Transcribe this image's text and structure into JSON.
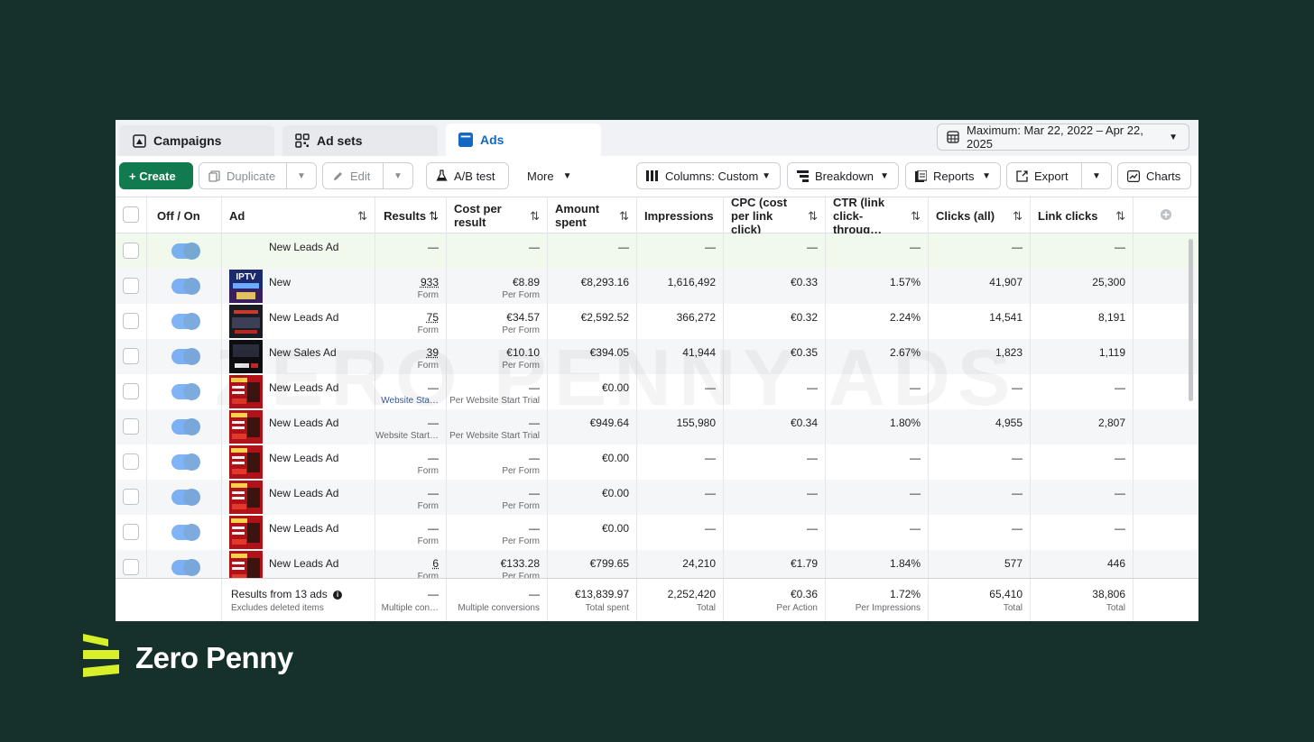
{
  "tabs": [
    {
      "label": "Campaigns",
      "icon": "flag-icon"
    },
    {
      "label": "Ad sets",
      "icon": "grid-icon"
    },
    {
      "label": "Ads",
      "icon": "ads-icon"
    }
  ],
  "date_range": "Maximum: Mar 22, 2022 – Apr 22, 2025",
  "toolbar": {
    "create": "+ Create",
    "duplicate": "Duplicate",
    "edit": "Edit",
    "ab_test": "A/B test",
    "more": "More",
    "columns": "Columns: Custom",
    "breakdown": "Breakdown",
    "reports": "Reports",
    "export": "Export",
    "charts": "Charts"
  },
  "columns": {
    "off_on": "Off / On",
    "ad": "Ad",
    "results": "Results",
    "cost_per_result": "Cost per result",
    "amount_spent": "Amount spent",
    "impressions": "Impressions",
    "cpc": "CPC (cost per link click)",
    "ctr": "CTR (link click-throug…",
    "clicks_all": "Clicks (all)",
    "link_clicks": "Link clicks"
  },
  "rows": [
    {
      "name": "New Leads Ad",
      "thumb": "none",
      "results": "—",
      "results_sub": "",
      "cpr": "—",
      "cpr_sub": "",
      "spent": "—",
      "impr": "—",
      "cpc": "—",
      "ctr": "—",
      "clicks": "—",
      "links": "—"
    },
    {
      "name": "New",
      "thumb": "iptv",
      "results": "933",
      "results_sub": "Form",
      "cpr": "€8.89",
      "cpr_sub": "Per Form",
      "spent": "€8,293.16",
      "impr": "1,616,492",
      "cpc": "€0.33",
      "ctr": "1.57%",
      "clicks": "41,907",
      "links": "25,300"
    },
    {
      "name": "New Leads Ad",
      "thumb": "dark",
      "results": "75",
      "results_sub": "Form",
      "cpr": "€34.57",
      "cpr_sub": "Per Form",
      "spent": "€2,592.52",
      "impr": "366,272",
      "cpc": "€0.32",
      "ctr": "2.24%",
      "clicks": "14,541",
      "links": "8,191"
    },
    {
      "name": "New Sales Ad",
      "thumb": "black",
      "results": "39",
      "results_sub": "Form",
      "cpr": "€10.10",
      "cpr_sub": "Per Form",
      "spent": "€394.05",
      "impr": "41,944",
      "cpc": "€0.35",
      "ctr": "2.67%",
      "clicks": "1,823",
      "links": "1,119"
    },
    {
      "name": "New Leads Ad",
      "thumb": "red",
      "results": "—",
      "results_sub": "Website Sta…",
      "cpr": "—",
      "cpr_sub": "Per Website Start Trial",
      "spent": "€0.00",
      "impr": "—",
      "cpc": "—",
      "ctr": "—",
      "clicks": "—",
      "links": "—"
    },
    {
      "name": "New Leads Ad",
      "thumb": "red",
      "results": "—",
      "results_sub": "Website Start…",
      "cpr": "—",
      "cpr_sub": "Per Website Start Trial",
      "spent": "€949.64",
      "impr": "155,980",
      "cpc": "€0.34",
      "ctr": "1.80%",
      "clicks": "4,955",
      "links": "2,807"
    },
    {
      "name": "New Leads Ad",
      "thumb": "red",
      "results": "—",
      "results_sub": "Form",
      "cpr": "—",
      "cpr_sub": "Per Form",
      "spent": "€0.00",
      "impr": "—",
      "cpc": "—",
      "ctr": "—",
      "clicks": "—",
      "links": "—"
    },
    {
      "name": "New Leads Ad",
      "thumb": "red",
      "results": "—",
      "results_sub": "Form",
      "cpr": "—",
      "cpr_sub": "Per Form",
      "spent": "€0.00",
      "impr": "—",
      "cpc": "—",
      "ctr": "—",
      "clicks": "—",
      "links": "—"
    },
    {
      "name": "New Leads Ad",
      "thumb": "red",
      "results": "—",
      "results_sub": "Form",
      "cpr": "—",
      "cpr_sub": "Per Form",
      "spent": "€0.00",
      "impr": "—",
      "cpc": "—",
      "ctr": "—",
      "clicks": "—",
      "links": "—"
    },
    {
      "name": "New Leads Ad",
      "thumb": "red",
      "results": "6",
      "results_sub": "Form",
      "cpr": "€133.28",
      "cpr_sub": "Per Form",
      "spent": "€799.65",
      "impr": "24,210",
      "cpc": "€1.79",
      "ctr": "1.84%",
      "clicks": "577",
      "links": "446"
    }
  ],
  "footer": {
    "label": "Results from 13 ads",
    "sub": "Excludes deleted items",
    "results": "—",
    "results_sub": "Multiple con…",
    "cpr": "—",
    "cpr_sub": "Multiple conversions",
    "spent": "€13,839.97",
    "spent_sub": "Total spent",
    "impr": "2,252,420",
    "impr_sub": "Total",
    "cpc": "€0.36",
    "cpc_sub": "Per Action",
    "ctr": "1.72%",
    "ctr_sub": "Per Impressions",
    "clicks": "65,410",
    "clicks_sub": "Total",
    "links": "38,806",
    "links_sub": "Total"
  },
  "watermark": "ZERO PENNY ADS",
  "brand": "Zero Penny",
  "iptv_label": "IPTV",
  "colors": {
    "background": "#16302b",
    "accent_green": "#127a4f",
    "brand_yellow": "#d8f02a",
    "toggle_blue": "#1467c2"
  }
}
